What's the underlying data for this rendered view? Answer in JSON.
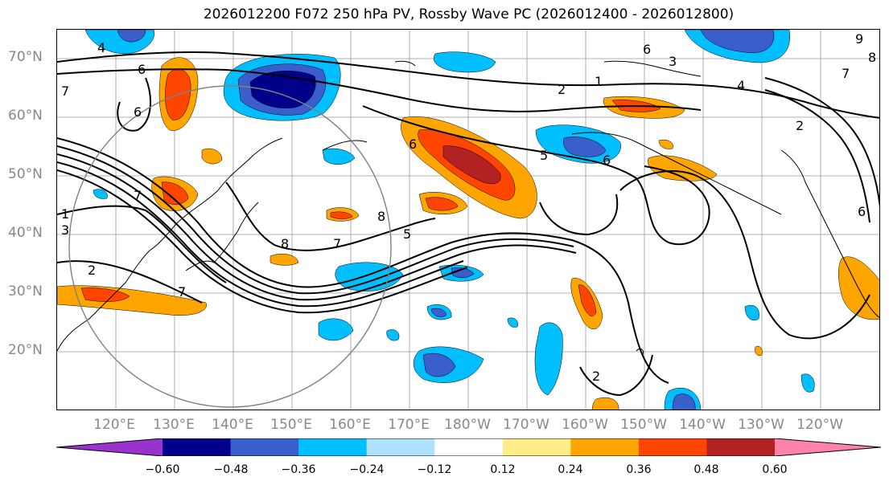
{
  "title": "2026012200 F072 250 hPa PV, Rossby Wave PC (2026012400 - 2026012800)",
  "map": {
    "lat_labels": [
      "70°N",
      "60°N",
      "50°N",
      "40°N",
      "30°N",
      "20°N"
    ],
    "lon_labels": [
      "120°E",
      "130°E",
      "140°E",
      "150°E",
      "160°E",
      "170°E",
      "180°W",
      "170°W",
      "160°W",
      "150°W",
      "140°W",
      "130°W",
      "120°W"
    ],
    "contour_labels": [
      "4",
      "6",
      "7",
      "6",
      "7",
      "3",
      "1",
      "2",
      "7",
      "8",
      "7",
      "8",
      "5",
      "6",
      "5",
      "6",
      "2",
      "1",
      "3",
      "6",
      "4",
      "9",
      "8",
      "7",
      "2",
      "6",
      "2"
    ],
    "contour_color": "#000000",
    "gridline_color": "#999999",
    "circle_color": "#808080"
  },
  "colorbar": {
    "tick_labels": [
      "−0.60",
      "−0.48",
      "−0.36",
      "−0.24",
      "−0.12",
      "0.12",
      "0.24",
      "0.36",
      "0.48",
      "0.60"
    ],
    "colors": [
      "#9a32cd",
      "#00008b",
      "#3a5fcd",
      "#00bfff",
      "#b0e2ff",
      "#ffffff",
      "#ffec8b",
      "#ffa500",
      "#ff4500",
      "#b22222",
      "#ff82ab"
    ]
  }
}
